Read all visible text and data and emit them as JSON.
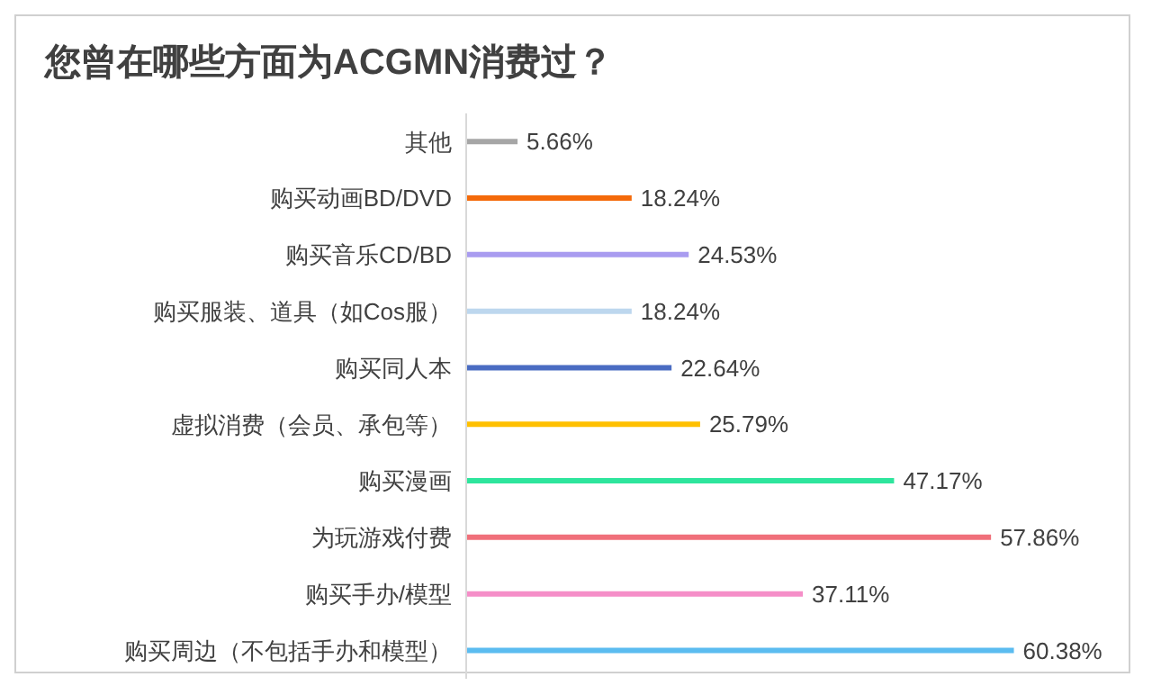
{
  "chart_data": {
    "type": "bar",
    "orientation": "horizontal",
    "title": "您曾在哪些方面为ACGMN消费过？",
    "categories": [
      "其他",
      "购买动画BD/DVD",
      "购买音乐CD/BD",
      "购买服装、道具（如Cos服）",
      "购买同人本",
      "虚拟消费（会员、承包等）",
      "购买漫画",
      "为玩游戏付费",
      "购买手办/模型",
      "购买周边（不包括手办和模型）"
    ],
    "values": [
      5.66,
      18.24,
      24.53,
      18.24,
      22.64,
      25.79,
      47.17,
      57.86,
      37.11,
      60.38
    ],
    "value_labels": [
      "5.66%",
      "18.24%",
      "24.53%",
      "18.24%",
      "22.64%",
      "25.79%",
      "47.17%",
      "57.86%",
      "37.11%",
      "60.38%"
    ],
    "colors": [
      "#a6a6a6",
      "#f46a0a",
      "#a99cf0",
      "#bdd7ee",
      "#4a6cc2",
      "#ffc000",
      "#2ee59d",
      "#f0707a",
      "#f58ec8",
      "#5bbcf0"
    ],
    "grid": false,
    "legend": false
  }
}
